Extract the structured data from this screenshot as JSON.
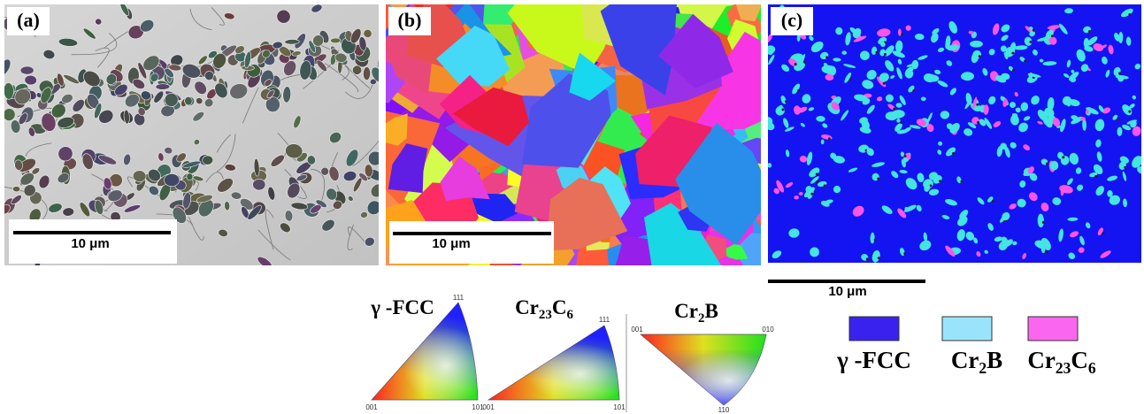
{
  "panels": [
    {
      "label": "(a)",
      "scale_bar": "10 μm"
    },
    {
      "label": "(b)",
      "scale_bar": "10 μm"
    },
    {
      "label": "(c)",
      "scale_bar": "10 μm"
    }
  ],
  "ipf_keys": [
    {
      "title": [
        {
          "text": "γ -FCC"
        }
      ],
      "corners": [
        "001",
        "101",
        "111"
      ]
    },
    {
      "title": [
        {
          "text": "Cr"
        },
        {
          "text": "23",
          "sub": true
        },
        {
          "text": "C"
        },
        {
          "text": "6",
          "sub": true
        }
      ],
      "corners": [
        "001",
        "101",
        "111"
      ]
    },
    {
      "title": [
        {
          "text": "Cr"
        },
        {
          "text": "2",
          "sub": true
        },
        {
          "text": "B"
        }
      ],
      "corners": [
        "001",
        "010",
        "110"
      ]
    }
  ],
  "phase_legend": [
    {
      "label": [
        {
          "text": "γ -FCC"
        }
      ],
      "color": "#3a22ee"
    },
    {
      "label": [
        {
          "text": "Cr"
        },
        {
          "text": "2",
          "sub": true
        },
        {
          "text": "B"
        }
      ],
      "color": "#9ae4fb"
    },
    {
      "label": [
        {
          "text": "Cr"
        },
        {
          "text": "23",
          "sub": true
        },
        {
          "text": "C"
        },
        {
          "text": "6",
          "sub": true
        }
      ],
      "color": "#fb66ee"
    }
  ]
}
